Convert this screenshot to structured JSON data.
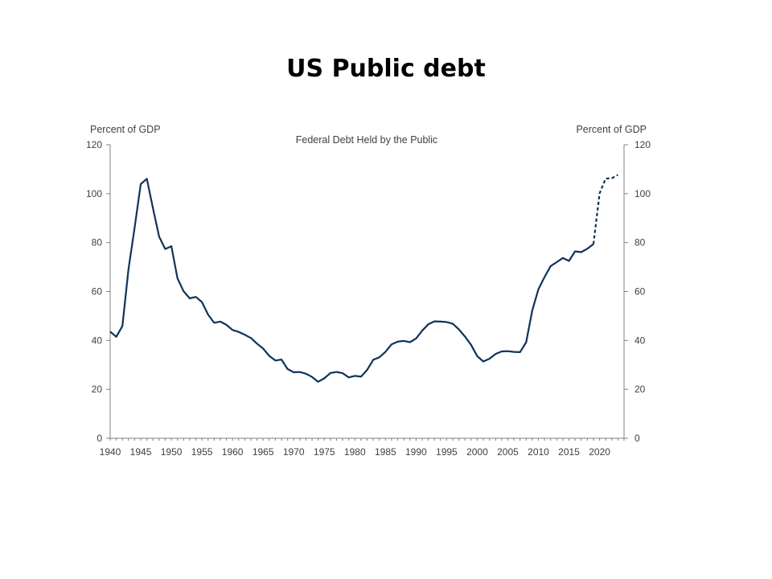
{
  "slide": {
    "title": "US Public debt"
  },
  "chart_data": {
    "type": "line",
    "title": "Federal Debt Held by the Public",
    "ylabel_left": "Percent of GDP",
    "ylabel_right": "Percent of GDP",
    "xlim": [
      1940,
      2024
    ],
    "ylim": [
      0,
      120
    ],
    "x_ticks": [
      1940,
      1945,
      1950,
      1955,
      1960,
      1965,
      1970,
      1975,
      1980,
      1985,
      1990,
      1995,
      2000,
      2005,
      2010,
      2015,
      2020
    ],
    "y_ticks": [
      0,
      20,
      40,
      60,
      80,
      100,
      120
    ],
    "grid": false,
    "legend": "none",
    "line_color": "#0f3358",
    "series": [
      {
        "style": "solid",
        "x": [
          1940,
          1941,
          1942,
          1943,
          1944,
          1945,
          1946,
          1947,
          1948,
          1949,
          1950,
          1951,
          1952,
          1953,
          1954,
          1955,
          1956,
          1957,
          1958,
          1959,
          1960,
          1961,
          1962,
          1963,
          1964,
          1965,
          1966,
          1967,
          1968,
          1969,
          1970,
          1971,
          1972,
          1973,
          1974,
          1975,
          1976,
          1977,
          1978,
          1979,
          1980,
          1981,
          1982,
          1983,
          1984,
          1985,
          1986,
          1987,
          1988,
          1989,
          1990,
          1991,
          1992,
          1993,
          1994,
          1995,
          1996,
          1997,
          1998,
          1999,
          2000,
          2001,
          2002,
          2003,
          2004,
          2005,
          2006,
          2007,
          2008,
          2009,
          2010,
          2011,
          2012,
          2013,
          2014,
          2015,
          2016,
          2017,
          2018,
          2019
        ],
        "y": [
          43.6,
          41.5,
          45.9,
          69.2,
          86.1,
          103.9,
          106.1,
          93.9,
          82.4,
          77.4,
          78.5,
          65.4,
          60.1,
          57.2,
          57.8,
          55.7,
          50.6,
          47.2,
          47.7,
          46.4,
          44.3,
          43.5,
          42.3,
          41.0,
          38.7,
          36.7,
          33.7,
          31.8,
          32.2,
          28.3,
          27.0,
          27.1,
          26.4,
          25.1,
          23.1,
          24.5,
          26.7,
          27.1,
          26.6,
          24.9,
          25.5,
          25.2,
          27.9,
          32.1,
          33.1,
          35.3,
          38.4,
          39.5,
          39.8,
          39.3,
          40.8,
          44.0,
          46.6,
          47.8,
          47.7,
          47.5,
          46.8,
          44.5,
          41.6,
          38.2,
          33.6,
          31.4,
          32.5,
          34.5,
          35.5,
          35.6,
          35.3,
          35.2,
          39.3,
          52.3,
          60.9,
          65.9,
          70.4,
          72.0,
          73.7,
          72.5,
          76.4,
          76.1,
          77.5,
          79.4
        ]
      },
      {
        "style": "dashed",
        "x": [
          2019,
          2020,
          2021,
          2022,
          2023
        ],
        "y": [
          79.4,
          100.1,
          106.2,
          106.3,
          107.7
        ]
      }
    ]
  }
}
